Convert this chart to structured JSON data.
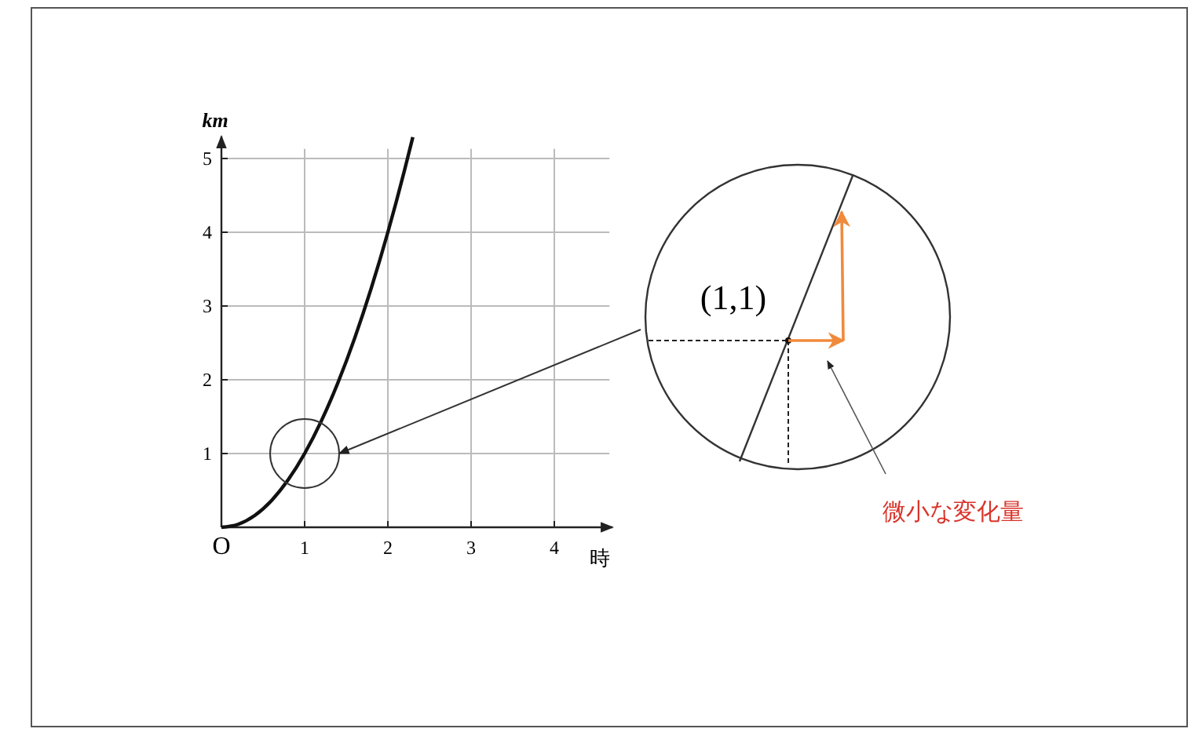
{
  "chart_data": {
    "type": "line",
    "xlabel": "時",
    "ylabel": "km",
    "xlim": [
      0,
      4.7
    ],
    "ylim": [
      0,
      5.3
    ],
    "xticks": [
      {
        "value": 0,
        "label": "O"
      },
      1,
      2,
      3,
      4
    ],
    "yticks": [
      1,
      2,
      3,
      4,
      5
    ],
    "grid": true,
    "marker": "none",
    "line_style": "solid",
    "series": [
      {
        "color": "#111111",
        "x": [
          0,
          0.2,
          0.4,
          0.6,
          0.8,
          1,
          1.2,
          1.4,
          1.6,
          1.8,
          2,
          2.1,
          2.2,
          2.3
        ],
        "values": [
          0,
          0.04,
          0.16,
          0.36,
          0.64,
          1,
          1.44,
          1.96,
          2.56,
          3.24,
          4,
          4.41,
          4.84,
          5.29
        ]
      }
    ],
    "annotations": [
      "(1,1)",
      "微小な変化量"
    ]
  }
}
